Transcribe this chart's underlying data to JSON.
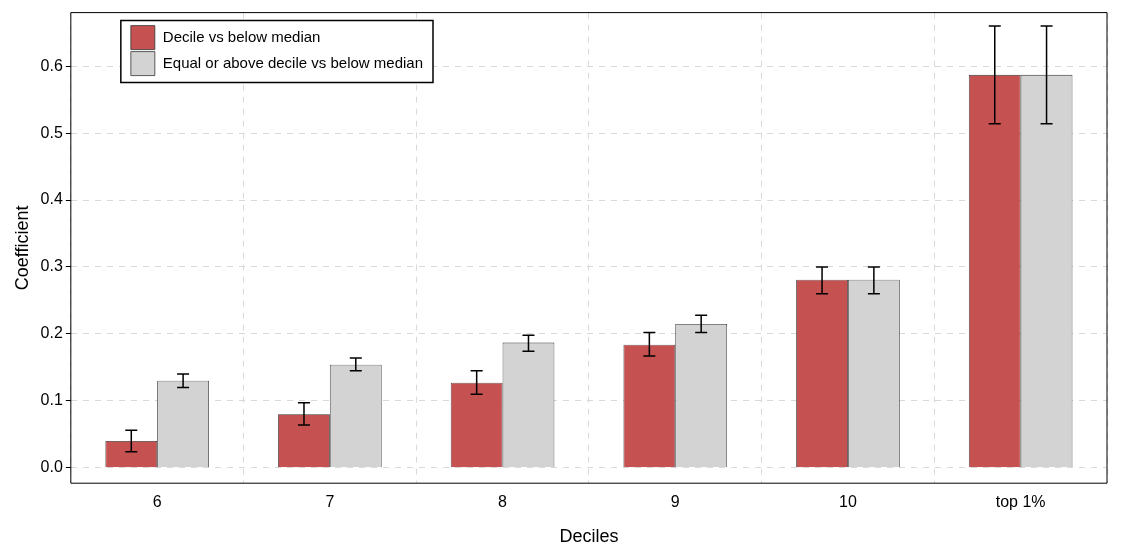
{
  "chart_data": {
    "type": "bar",
    "xlabel": "Deciles",
    "ylabel": "Coefficient",
    "categories": [
      "6",
      "7",
      "8",
      "9",
      "10",
      "top 1%"
    ],
    "series": [
      {
        "name": "Decile vs below median",
        "color": "#c55151",
        "values": [
          0.04,
          0.08,
          0.127,
          0.184,
          0.281,
          0.587
        ],
        "errors": [
          [
            0.024,
            0.056
          ],
          [
            0.064,
            0.097
          ],
          [
            0.11,
            0.145
          ],
          [
            0.167,
            0.202
          ],
          [
            0.26,
            0.3
          ],
          [
            0.514,
            0.66
          ]
        ]
      },
      {
        "name": "Equal or above decile vs below median",
        "color": "#d3d3d3",
        "values": [
          0.13,
          0.154,
          0.187,
          0.215,
          0.281,
          0.587
        ],
        "errors": [
          [
            0.12,
            0.14
          ],
          [
            0.145,
            0.164
          ],
          [
            0.174,
            0.198
          ],
          [
            0.202,
            0.228
          ],
          [
            0.26,
            0.3
          ],
          [
            0.514,
            0.66
          ]
        ]
      }
    ],
    "ylim": [
      -0.023,
      0.68
    ],
    "yticks": [
      {
        "value": 0,
        "label": "0.0"
      },
      {
        "value": 0.1,
        "label": "0.1"
      },
      {
        "value": 0.2,
        "label": "0.2"
      },
      {
        "value": 0.3,
        "label": "0.3"
      },
      {
        "value": 0.4,
        "label": "0.4"
      },
      {
        "value": 0.5,
        "label": "0.5"
      },
      {
        "value": 0.6,
        "label": "0.6"
      }
    ],
    "grid": true,
    "legend": "top left"
  }
}
